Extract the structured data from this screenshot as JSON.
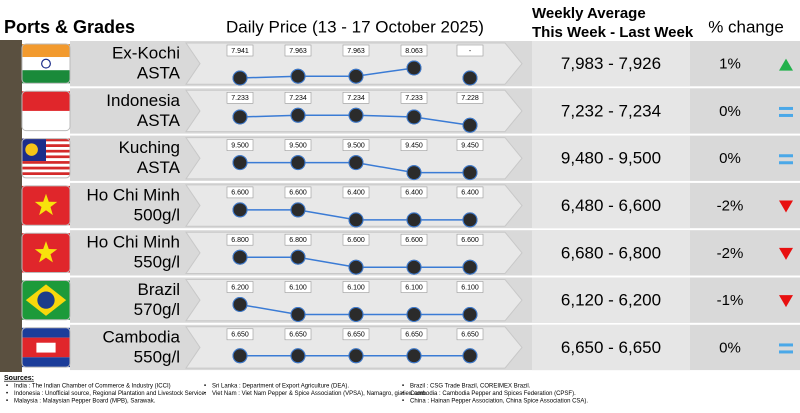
{
  "header": {
    "ports": "Ports & Grades",
    "daily": "Daily Price (13 - 17 October 2025)",
    "weekly_line1": "Weekly Average",
    "weekly_line2": "This Week - Last Week",
    "change": "% change"
  },
  "rows": [
    {
      "port": "Ex-Kochi",
      "grade": "ASTA",
      "flag": "india",
      "daily": [
        {
          "value": 7941,
          "label": "7.941"
        },
        {
          "value": 7963,
          "label": "7.963"
        },
        {
          "value": 7963,
          "label": "7.963"
        },
        {
          "value": 8063,
          "label": "8.063"
        },
        {
          "value": null,
          "label": "-"
        }
      ],
      "weekly": "7,983 - 7,926",
      "change": "1%",
      "indicator": "up"
    },
    {
      "port": "Indonesia",
      "grade": "ASTA",
      "flag": "indonesia",
      "daily": [
        {
          "value": 7233,
          "label": "7.233"
        },
        {
          "value": 7234,
          "label": "7.234"
        },
        {
          "value": 7234,
          "label": "7.234"
        },
        {
          "value": 7233,
          "label": "7.233"
        },
        {
          "value": 7228,
          "label": "7.228"
        }
      ],
      "weekly": "7,232 - 7,234",
      "change": "0%",
      "indicator": "equal"
    },
    {
      "port": "Kuching",
      "grade": "ASTA",
      "flag": "malaysia",
      "daily": [
        {
          "value": 9500,
          "label": "9.500"
        },
        {
          "value": 9500,
          "label": "9.500"
        },
        {
          "value": 9500,
          "label": "9.500"
        },
        {
          "value": 9450,
          "label": "9.450"
        },
        {
          "value": 9450,
          "label": "9.450"
        }
      ],
      "weekly": "9,480 - 9,500",
      "change": "0%",
      "indicator": "equal"
    },
    {
      "port": "Ho Chi Minh",
      "grade": "500g/l",
      "flag": "vietnam",
      "daily": [
        {
          "value": 6600,
          "label": "6.600"
        },
        {
          "value": 6600,
          "label": "6.600"
        },
        {
          "value": 6400,
          "label": "6.400"
        },
        {
          "value": 6400,
          "label": "6.400"
        },
        {
          "value": 6400,
          "label": "6.400"
        }
      ],
      "weekly": "6,480 - 6,600",
      "change": "-2%",
      "indicator": "down"
    },
    {
      "port": "Ho Chi Minh",
      "grade": "550g/l",
      "flag": "vietnam",
      "daily": [
        {
          "value": 6800,
          "label": "6.800"
        },
        {
          "value": 6800,
          "label": "6.800"
        },
        {
          "value": 6600,
          "label": "6.600"
        },
        {
          "value": 6600,
          "label": "6.600"
        },
        {
          "value": 6600,
          "label": "6.600"
        }
      ],
      "weekly": "6,680 - 6,800",
      "change": "-2%",
      "indicator": "down"
    },
    {
      "port": "Brazil",
      "grade": "570g/l",
      "flag": "brazil",
      "daily": [
        {
          "value": 6200,
          "label": "6.200"
        },
        {
          "value": 6100,
          "label": "6.100"
        },
        {
          "value": 6100,
          "label": "6.100"
        },
        {
          "value": 6100,
          "label": "6.100"
        },
        {
          "value": 6100,
          "label": "6.100"
        }
      ],
      "weekly": "6,120 - 6,200",
      "change": "-1%",
      "indicator": "down"
    },
    {
      "port": "Cambodia",
      "grade": "550g/l",
      "flag": "cambodia",
      "daily": [
        {
          "value": 6650,
          "label": "6.650"
        },
        {
          "value": 6650,
          "label": "6.650"
        },
        {
          "value": 6650,
          "label": "6.650"
        },
        {
          "value": 6650,
          "label": "6.650"
        },
        {
          "value": 6650,
          "label": "6.650"
        }
      ],
      "weekly": "6,650 - 6,650",
      "change": "0%",
      "indicator": "equal"
    }
  ],
  "sources": {
    "title": "Sources:",
    "columns": [
      [
        "India : The Indian Chamber of Commerce & Industry (ICCI)",
        "Indonesia : Unofficial source, Regional Plantation and Livestock Service.",
        "Malaysia : Malaysian Pepper Board (MPB), Sarawak."
      ],
      [
        "Sri Lanka : Department of Export Agriculture (DEA).",
        "Viet Nam : Viet Nam Pepper & Spice Association (VPSA), Namagro, giatieu.com."
      ],
      [
        "Brazil : CSG Trade Brazil, COREIMEX Brazil.",
        "Cambodia : Cambodia Pepper and Spices Federation (CPSF).",
        "China : Hainan Pepper Association, China Spice Association CSA)."
      ]
    ]
  }
}
